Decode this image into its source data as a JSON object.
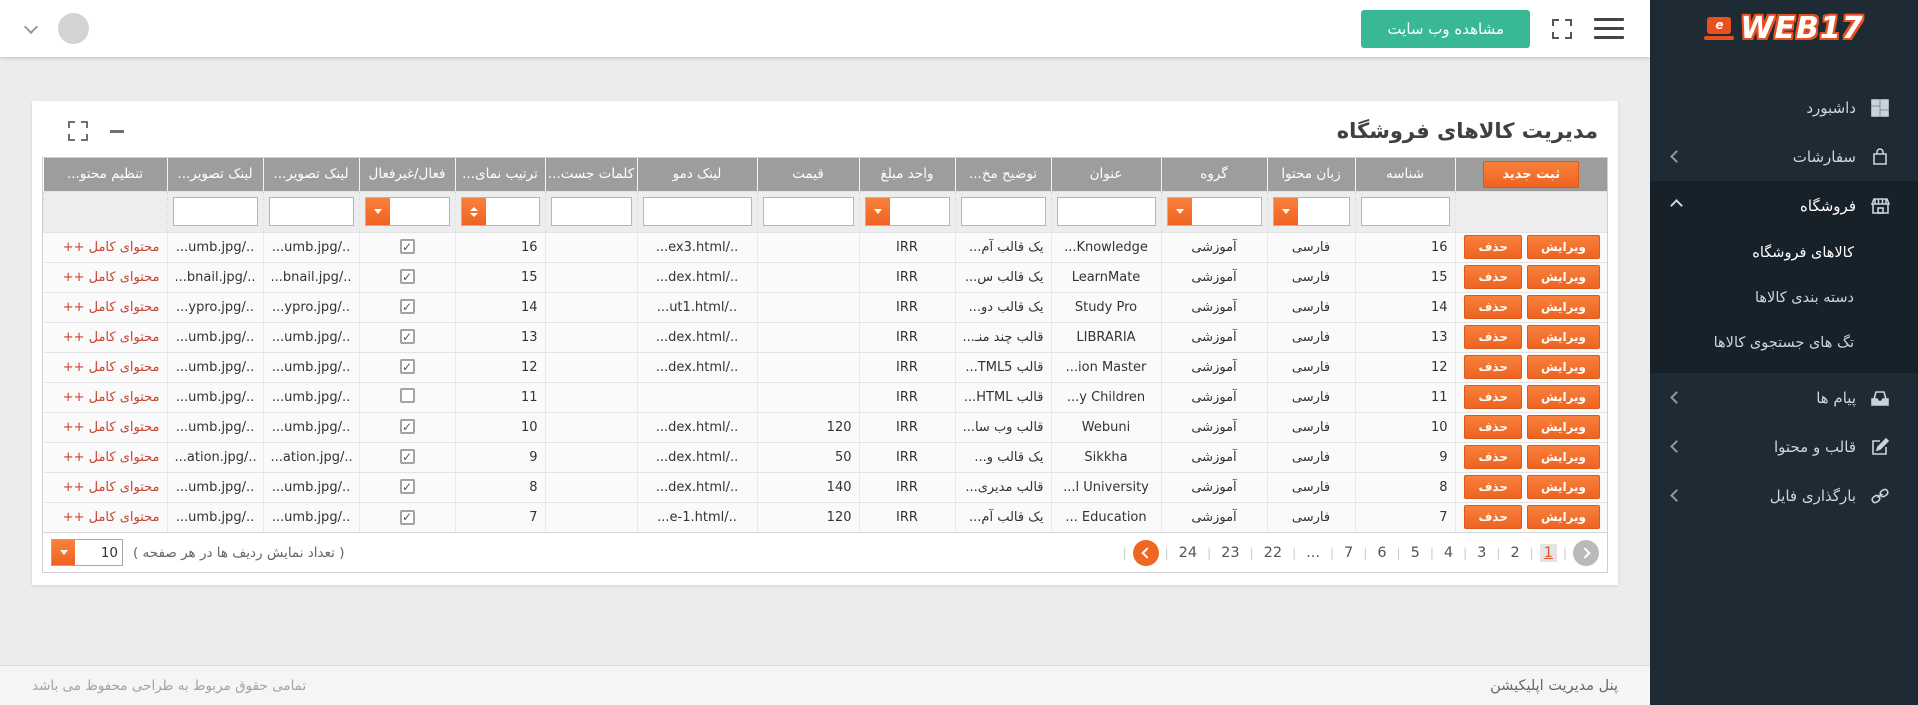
{
  "topbar": {
    "view_site_label": "مشاهده وب سایت"
  },
  "sidebar": {
    "logo_text": "WEB17",
    "logo_letter": "e",
    "items": [
      {
        "label": "داشبورد",
        "icon": "dashboard-icon",
        "chevron": "none"
      },
      {
        "label": "سفارشات",
        "icon": "orders-bag-icon",
        "chevron": "left"
      },
      {
        "label": "فروشگاه",
        "icon": "store-icon",
        "chevron": "up",
        "expanded": true,
        "children": [
          {
            "label": "کالاهای فروشگاه",
            "active": true
          },
          {
            "label": "دسته بندی کالاها",
            "active": false
          },
          {
            "label": "تگ های جستجوی کالاها",
            "active": false
          }
        ]
      },
      {
        "label": "پیام ها",
        "icon": "messages-inbox-icon",
        "chevron": "left"
      },
      {
        "label": "قالب و محتوا",
        "icon": "content-edit-icon",
        "chevron": "left"
      },
      {
        "label": "بارگذاری فایل",
        "icon": "file-upload-link-icon",
        "chevron": "left"
      }
    ]
  },
  "page": {
    "title": "مدیریت کالاهای فروشگاه"
  },
  "table": {
    "new_button": "ثبت جدید",
    "edit_button": "ویرایش",
    "delete_button": "حذف",
    "full_content_link": "محتوای کامل ++",
    "columns": [
      {
        "key": "actions",
        "label": "",
        "filter": "new-button"
      },
      {
        "key": "id",
        "label": "شناسه",
        "filter": "text"
      },
      {
        "key": "lang",
        "label": "زبان محتوا",
        "filter": "select"
      },
      {
        "key": "group",
        "label": "گروه",
        "filter": "select"
      },
      {
        "key": "title",
        "label": "عنوان",
        "filter": "text"
      },
      {
        "key": "desc",
        "label": "توضیح مخ...",
        "filter": "text"
      },
      {
        "key": "unit",
        "label": "واحد مبلغ",
        "filter": "select"
      },
      {
        "key": "price",
        "label": "قیمت",
        "filter": "text"
      },
      {
        "key": "demo",
        "label": "لینک دمو",
        "filter": "text"
      },
      {
        "key": "keywords",
        "label": "کلمات جست...",
        "filter": "text"
      },
      {
        "key": "order",
        "label": "ترتیب نمای...",
        "filter": "sort"
      },
      {
        "key": "active",
        "label": "فعال/غیرفعال",
        "filter": "select"
      },
      {
        "key": "img1",
        "label": "لینک تصویر...",
        "filter": "text"
      },
      {
        "key": "img2",
        "label": "لینک تصویر...",
        "filter": "text"
      },
      {
        "key": "content",
        "label": "تنظیم محتو...",
        "filter": "none"
      }
    ],
    "rows": [
      {
        "id": "16",
        "lang": "فارسی",
        "group": "آموزشی",
        "title": "...Knowledge",
        "desc": "یک قالب آم...",
        "unit": "IRR",
        "price": "",
        "demo": "...ex3.html/..",
        "keywords": "",
        "order": "16",
        "active": true,
        "img1": "...umb.jpg/..",
        "img2": "...umb.jpg/.."
      },
      {
        "id": "15",
        "lang": "فارسی",
        "group": "آموزشی",
        "title": "LearnMate",
        "desc": "یک قالب س...",
        "unit": "IRR",
        "price": "",
        "demo": "...dex.html/..",
        "keywords": "",
        "order": "15",
        "active": true,
        "img1": "...bnail.jpg/..",
        "img2": "...bnail.jpg/.."
      },
      {
        "id": "14",
        "lang": "فارسی",
        "group": "آموزشی",
        "title": "Study Pro",
        "desc": "یک قالب دو...",
        "unit": "IRR",
        "price": "",
        "demo": "...ut1.html/..",
        "keywords": "",
        "order": "14",
        "active": true,
        "img1": "...ypro.jpg/..",
        "img2": "...ypro.jpg/.."
      },
      {
        "id": "13",
        "lang": "فارسی",
        "group": "آموزشی",
        "title": "LIBRARIA",
        "desc": "قالب چند منـ...",
        "unit": "IRR",
        "price": "",
        "demo": "...dex.html/..",
        "keywords": "",
        "order": "13",
        "active": true,
        "img1": "...umb.jpg/..",
        "img2": "...umb.jpg/.."
      },
      {
        "id": "12",
        "lang": "فارسی",
        "group": "آموزشی",
        "title": "...ion Master",
        "desc": "قالب TML5...",
        "unit": "IRR",
        "price": "",
        "demo": "...dex.html/..",
        "keywords": "",
        "order": "12",
        "active": true,
        "img1": "...umb.jpg/..",
        "img2": "...umb.jpg/.."
      },
      {
        "id": "11",
        "lang": "فارسی",
        "group": "آموزشی",
        "title": "...y Children",
        "desc": "قالب HTML...",
        "unit": "IRR",
        "price": "",
        "demo": "",
        "keywords": "",
        "order": "11",
        "active": false,
        "img1": "...umb.jpg/..",
        "img2": "...umb.jpg/.."
      },
      {
        "id": "10",
        "lang": "فارسی",
        "group": "آموزشی",
        "title": "Webuni",
        "desc": "قالب وب سا...",
        "unit": "IRR",
        "price": "120",
        "demo": "...dex.html/..",
        "keywords": "",
        "order": "10",
        "active": true,
        "img1": "...umb.jpg/..",
        "img2": "...umb.jpg/.."
      },
      {
        "id": "9",
        "lang": "فارسی",
        "group": "آموزشی",
        "title": "Sikkha",
        "desc": "یک قالب و...",
        "unit": "IRR",
        "price": "50",
        "demo": "...dex.html/..",
        "keywords": "",
        "order": "9",
        "active": true,
        "img1": "...ation.jpg/..",
        "img2": "...ation.jpg/.."
      },
      {
        "id": "8",
        "lang": "فارسی",
        "group": "آموزشی",
        "title": "...l University",
        "desc": "قالب مدیری...",
        "unit": "IRR",
        "price": "140",
        "demo": "...dex.html/..",
        "keywords": "",
        "order": "8",
        "active": true,
        "img1": "...umb.jpg/..",
        "img2": "...umb.jpg/.."
      },
      {
        "id": "7",
        "lang": "فارسی",
        "group": "آموزشی",
        "title": "... Education",
        "desc": "یک قالب آم...",
        "unit": "IRR",
        "price": "120",
        "demo": "...e-1.html/..",
        "keywords": "",
        "order": "7",
        "active": true,
        "img1": "...umb.jpg/..",
        "img2": "...umb.jpg/.."
      }
    ]
  },
  "pagination": {
    "pages_ltr": [
      "24",
      "23",
      "22",
      "...",
      "7",
      "6",
      "5",
      "4",
      "3",
      "2"
    ],
    "active_page": "1",
    "rows_per_page": "10",
    "rows_label": "( تعداد نمایش ردیف ها در هر صفحه )"
  },
  "footer": {
    "right_text": "پنل مدیریت اپلیکیشن",
    "left_text": "تمامی حقوق مربوط به طراحی محفوظ می باشد"
  }
}
